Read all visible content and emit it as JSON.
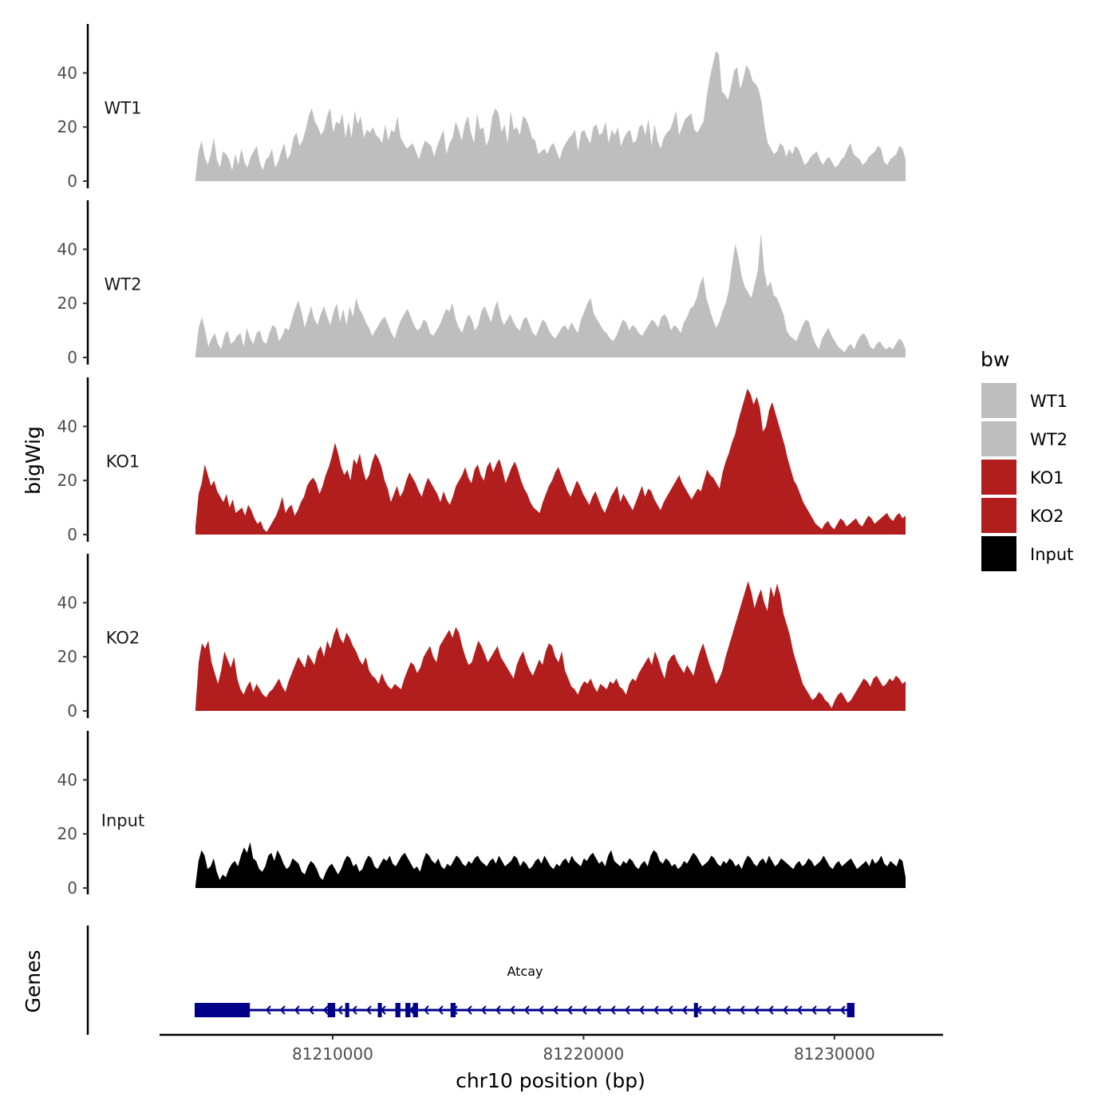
{
  "chart_data": {
    "type": "area",
    "subtype": "genome-browser-tracks",
    "ylabel": "bigWig",
    "xlabel": "chr10 position (bp)",
    "xlim": [
      81204500,
      81233000
    ],
    "x_ticks": [
      81210000,
      81220000,
      81230000
    ],
    "x_tick_labels": [
      "81210000",
      "81220000",
      "81230000"
    ],
    "ylim": [
      0,
      57
    ],
    "y_ticks": [
      0,
      20,
      40
    ],
    "y_tick_labels": [
      "0",
      "20",
      "40"
    ],
    "colors": {
      "WT": "#bebebe",
      "KO": "#b21e1e",
      "Input": "#000000",
      "gene": "#00008b"
    },
    "tracks": [
      {
        "name": "WT1",
        "color": "#bebebe",
        "values": [
          1,
          11,
          15,
          9,
          6,
          10,
          16,
          8,
          5,
          11,
          10,
          8,
          4,
          10,
          6,
          12,
          7,
          5,
          9,
          11,
          13,
          7,
          4,
          8,
          9,
          12,
          5,
          7,
          11,
          14,
          8,
          10,
          16,
          18,
          13,
          15,
          19,
          24,
          27,
          22,
          20,
          17,
          19,
          24,
          27,
          18,
          22,
          21,
          25,
          16,
          22,
          16,
          26,
          21,
          24,
          16,
          19,
          18,
          20,
          17,
          16,
          14,
          21,
          15,
          19,
          18,
          24,
          16,
          14,
          12,
          13,
          14,
          11,
          8,
          12,
          15,
          14,
          13,
          9,
          13,
          16,
          19,
          10,
          14,
          16,
          22,
          19,
          15,
          21,
          24,
          18,
          14,
          25,
          19,
          20,
          13,
          16,
          24,
          27,
          25,
          18,
          21,
          14,
          26,
          19,
          20,
          17,
          24,
          23,
          20,
          16,
          15,
          10,
          11,
          12,
          10,
          13,
          14,
          11,
          8,
          12,
          14,
          16,
          17,
          19,
          11,
          18,
          19,
          16,
          14,
          20,
          21,
          17,
          18,
          22,
          14,
          19,
          17,
          20,
          13,
          16,
          18,
          19,
          14,
          15,
          20,
          21,
          17,
          23,
          13,
          21,
          15,
          12,
          16,
          18,
          19,
          22,
          26,
          17,
          20,
          23,
          24,
          25,
          19,
          18,
          20,
          22,
          31,
          38,
          43,
          48,
          47,
          33,
          32,
          30,
          35,
          41,
          42,
          34,
          38,
          43,
          41,
          37,
          36,
          34,
          29,
          20,
          14,
          12,
          10,
          11,
          14,
          13,
          9,
          12,
          10,
          13,
          12,
          9,
          6,
          7,
          9,
          10,
          11,
          8,
          6,
          8,
          9,
          7,
          5,
          6,
          8,
          9,
          12,
          14,
          10,
          9,
          8,
          6,
          7,
          9,
          10,
          11,
          13,
          12,
          7,
          6,
          8,
          9,
          10,
          13,
          12,
          8
        ]
      },
      {
        "name": "WT2",
        "color": "#bebebe",
        "values": [
          1,
          11,
          15,
          10,
          4,
          7,
          9,
          5,
          3,
          8,
          10,
          5,
          6,
          8,
          9,
          4,
          11,
          7,
          5,
          9,
          10,
          6,
          5,
          9,
          12,
          11,
          6,
          8,
          11,
          10,
          14,
          18,
          21,
          17,
          11,
          15,
          19,
          14,
          12,
          16,
          19,
          15,
          12,
          17,
          20,
          13,
          18,
          12,
          19,
          15,
          22,
          18,
          16,
          13,
          11,
          8,
          10,
          12,
          14,
          15,
          12,
          9,
          7,
          11,
          14,
          16,
          18,
          15,
          12,
          10,
          11,
          14,
          13,
          9,
          8,
          10,
          12,
          15,
          18,
          17,
          20,
          14,
          11,
          9,
          13,
          16,
          14,
          10,
          12,
          17,
          19,
          16,
          13,
          18,
          21,
          15,
          12,
          14,
          16,
          13,
          11,
          10,
          14,
          15,
          12,
          9,
          8,
          11,
          14,
          13,
          10,
          8,
          7,
          9,
          11,
          12,
          10,
          13,
          11,
          9,
          14,
          17,
          20,
          22,
          16,
          14,
          12,
          10,
          9,
          7,
          6,
          8,
          11,
          14,
          13,
          10,
          12,
          11,
          9,
          8,
          10,
          12,
          14,
          13,
          11,
          15,
          16,
          14,
          10,
          12,
          11,
          9,
          13,
          15,
          18,
          19,
          22,
          27,
          30,
          22,
          18,
          14,
          11,
          13,
          17,
          20,
          25,
          34,
          42,
          37,
          30,
          26,
          24,
          22,
          27,
          32,
          46,
          32,
          26,
          28,
          23,
          22,
          19,
          16,
          10,
          8,
          7,
          6,
          9,
          12,
          14,
          13,
          8,
          5,
          3,
          7,
          9,
          11,
          8,
          6,
          4,
          3,
          2,
          4,
          5,
          3,
          6,
          8,
          9,
          7,
          4,
          3,
          5,
          6,
          4,
          3,
          4,
          3,
          5,
          7,
          6,
          3
        ]
      },
      {
        "name": "KO1",
        "color": "#b21e1e",
        "values": [
          3,
          15,
          19,
          26,
          22,
          18,
          20,
          16,
          14,
          12,
          15,
          10,
          13,
          8,
          9,
          10,
          7,
          11,
          9,
          6,
          4,
          5,
          2,
          1,
          3,
          5,
          7,
          10,
          14,
          8,
          10,
          11,
          7,
          9,
          12,
          14,
          18,
          20,
          21,
          19,
          15,
          18,
          22,
          25,
          29,
          34,
          30,
          25,
          22,
          24,
          20,
          28,
          26,
          30,
          24,
          20,
          22,
          27,
          30,
          28,
          25,
          20,
          17,
          12,
          15,
          18,
          14,
          16,
          20,
          23,
          21,
          19,
          16,
          14,
          18,
          21,
          19,
          17,
          15,
          12,
          16,
          13,
          11,
          14,
          18,
          20,
          22,
          25,
          21,
          19,
          24,
          26,
          22,
          20,
          25,
          27,
          23,
          26,
          28,
          24,
          19,
          22,
          25,
          27,
          24,
          20,
          17,
          15,
          12,
          10,
          9,
          8,
          12,
          15,
          18,
          20,
          23,
          25,
          22,
          19,
          16,
          14,
          17,
          20,
          18,
          15,
          13,
          11,
          14,
          16,
          13,
          10,
          8,
          11,
          14,
          16,
          18,
          12,
          15,
          13,
          11,
          9,
          12,
          15,
          18,
          14,
          17,
          16,
          13,
          11,
          9,
          12,
          14,
          16,
          18,
          20,
          22,
          19,
          17,
          15,
          13,
          15,
          17,
          16,
          20,
          24,
          22,
          21,
          19,
          17,
          23,
          27,
          30,
          34,
          37,
          42,
          46,
          50,
          54,
          52,
          48,
          51,
          47,
          38,
          40,
          46,
          49,
          45,
          41,
          37,
          33,
          28,
          24,
          20,
          18,
          15,
          12,
          10,
          8,
          6,
          4,
          3,
          2,
          4,
          5,
          3,
          2,
          4,
          6,
          5,
          3,
          4,
          5,
          6,
          4,
          3,
          5,
          7,
          6,
          4,
          5,
          6,
          7,
          8,
          6,
          5,
          7,
          8,
          6,
          7
        ]
      },
      {
        "name": "KO2",
        "color": "#b21e1e",
        "values": [
          1,
          18,
          25,
          23,
          26,
          18,
          14,
          10,
          15,
          22,
          19,
          16,
          20,
          12,
          8,
          6,
          9,
          11,
          7,
          10,
          8,
          6,
          5,
          7,
          8,
          10,
          12,
          9,
          7,
          11,
          14,
          17,
          20,
          18,
          16,
          21,
          19,
          17,
          22,
          24,
          20,
          26,
          23,
          28,
          31,
          27,
          25,
          29,
          27,
          24,
          22,
          19,
          17,
          20,
          15,
          13,
          12,
          10,
          14,
          11,
          9,
          8,
          10,
          9,
          8,
          12,
          15,
          18,
          17,
          14,
          16,
          20,
          22,
          24,
          20,
          18,
          24,
          26,
          28,
          30,
          27,
          31,
          29,
          24,
          20,
          17,
          18,
          22,
          26,
          24,
          21,
          18,
          20,
          22,
          24,
          20,
          18,
          16,
          14,
          12,
          17,
          20,
          22,
          18,
          15,
          13,
          16,
          19,
          17,
          22,
          25,
          24,
          20,
          18,
          22,
          15,
          12,
          9,
          8,
          6,
          9,
          11,
          10,
          12,
          9,
          7,
          10,
          9,
          8,
          11,
          10,
          12,
          9,
          8,
          6,
          10,
          12,
          11,
          14,
          16,
          18,
          20,
          17,
          22,
          19,
          15,
          12,
          18,
          20,
          21,
          18,
          16,
          14,
          17,
          15,
          13,
          18,
          22,
          25,
          21,
          17,
          14,
          10,
          12,
          15,
          20,
          24,
          28,
          32,
          36,
          40,
          44,
          48,
          44,
          38,
          42,
          45,
          40,
          37,
          46,
          42,
          47,
          43,
          36,
          32,
          28,
          22,
          18,
          14,
          10,
          8,
          6,
          4,
          5,
          7,
          6,
          4,
          3,
          1,
          4,
          6,
          7,
          5,
          3,
          4,
          6,
          8,
          10,
          12,
          11,
          9,
          12,
          13,
          11,
          9,
          10,
          12,
          11,
          13,
          12,
          10,
          11
        ]
      },
      {
        "name": "Input",
        "color": "#000000",
        "values": [
          1,
          10,
          14,
          12,
          7,
          8,
          11,
          6,
          3,
          5,
          4,
          7,
          9,
          10,
          8,
          12,
          15,
          13,
          17,
          11,
          10,
          7,
          6,
          8,
          12,
          13,
          10,
          14,
          12,
          9,
          7,
          8,
          11,
          10,
          9,
          6,
          5,
          8,
          10,
          9,
          7,
          4,
          3,
          6,
          8,
          9,
          7,
          5,
          7,
          10,
          12,
          11,
          8,
          9,
          6,
          7,
          10,
          12,
          11,
          8,
          7,
          9,
          11,
          10,
          12,
          9,
          8,
          10,
          12,
          13,
          11,
          9,
          7,
          8,
          6,
          10,
          13,
          12,
          10,
          9,
          11,
          8,
          7,
          9,
          8,
          10,
          12,
          11,
          9,
          8,
          10,
          9,
          11,
          12,
          10,
          9,
          8,
          10,
          11,
          9,
          12,
          10,
          8,
          9,
          10,
          12,
          11,
          8,
          10,
          9,
          7,
          8,
          10,
          11,
          9,
          12,
          10,
          8,
          7,
          9,
          8,
          10,
          11,
          9,
          12,
          10,
          9,
          8,
          11,
          10,
          12,
          13,
          11,
          9,
          10,
          8,
          12,
          14,
          10,
          9,
          8,
          10,
          9,
          11,
          10,
          8,
          7,
          9,
          10,
          8,
          12,
          14,
          13,
          10,
          9,
          11,
          10,
          8,
          9,
          7,
          8,
          10,
          9,
          11,
          13,
          12,
          10,
          8,
          9,
          10,
          12,
          11,
          9,
          8,
          10,
          9,
          11,
          10,
          8,
          9,
          7,
          10,
          12,
          11,
          9,
          8,
          10,
          11,
          9,
          12,
          10,
          8,
          9,
          11,
          10,
          9,
          8,
          7,
          9,
          10,
          8,
          9,
          11,
          10,
          8,
          9,
          10,
          12,
          10,
          8,
          7,
          9,
          10,
          8,
          9,
          10,
          11,
          9,
          7,
          8,
          9,
          10,
          8,
          11,
          9,
          10,
          12,
          9,
          8,
          10,
          9,
          8,
          11,
          10,
          4
        ]
      }
    ],
    "legend": {
      "title": "bw",
      "position": "right",
      "entries": [
        {
          "label": "WT1",
          "color": "#bebebe"
        },
        {
          "label": "WT2",
          "color": "#bebebe"
        },
        {
          "label": "KO1",
          "color": "#b21e1e"
        },
        {
          "label": "KO2",
          "color": "#b21e1e"
        },
        {
          "label": "Input",
          "color": "#000000"
        }
      ]
    },
    "genes": {
      "panel_title": "Genes",
      "items": [
        {
          "name": "Atcay",
          "strand": "-",
          "start": 81204500,
          "end": 81230800,
          "exons": [
            [
              81204500,
              81206700
            ],
            [
              81209800,
              81210100
            ],
            [
              81210500,
              81210600
            ],
            [
              81211800,
              81211900
            ],
            [
              81212500,
              81212700
            ],
            [
              81212900,
              81213100
            ],
            [
              81213200,
              81213400
            ],
            [
              81214700,
              81214900
            ],
            [
              81224400,
              81224500
            ],
            [
              81230500,
              81230800
            ]
          ]
        }
      ]
    }
  }
}
